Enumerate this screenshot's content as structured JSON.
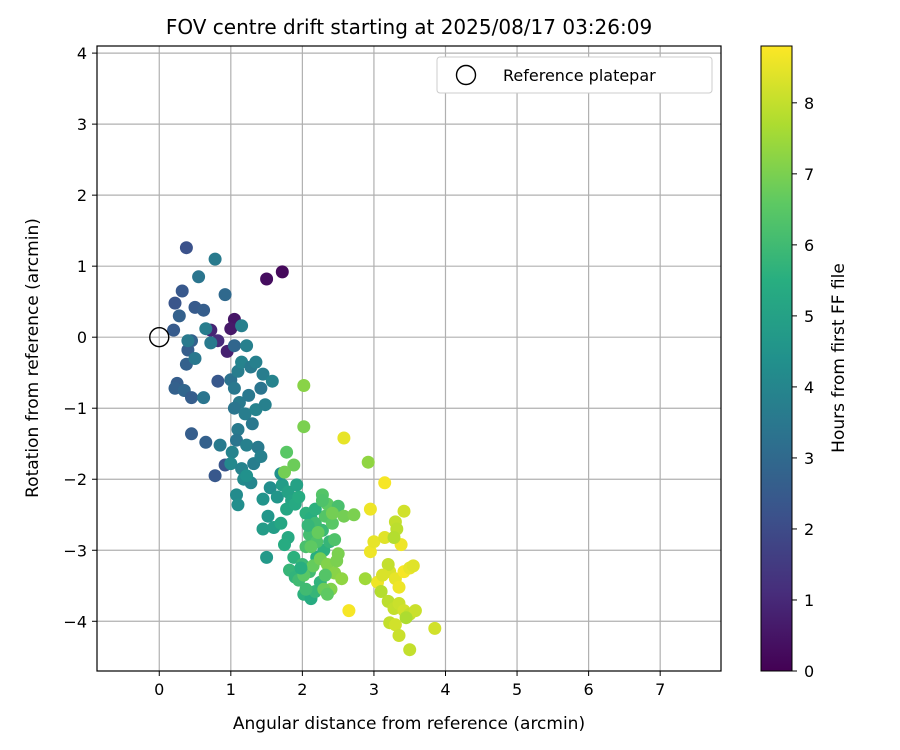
{
  "chart_data": {
    "type": "scatter",
    "title": "FOV centre drift starting at 2025/08/17 03:26:09",
    "xlabel": "Angular distance from reference (arcmin)",
    "ylabel": "Rotation from reference (arcmin)",
    "xlim": [
      -0.87,
      7.85
    ],
    "ylim": [
      -4.7,
      4.1
    ],
    "xticks": [
      0,
      1,
      2,
      3,
      4,
      5,
      6,
      7
    ],
    "yticks": [
      -4,
      -3,
      -2,
      -1,
      0,
      1,
      2,
      3,
      4
    ],
    "grid": true,
    "legend": {
      "placement": "top-right",
      "entries": [
        "Reference platepar"
      ]
    },
    "reference_point": {
      "x": 0,
      "y": 0,
      "label": "Reference platepar"
    },
    "colorbar": {
      "label": "Hours from first FF file",
      "colormap": "viridis",
      "range": [
        0,
        8.8
      ],
      "ticks": [
        0,
        1,
        2,
        3,
        4,
        5,
        6,
        7,
        8
      ]
    },
    "points": [
      [
        1.5,
        0.82,
        0.3
      ],
      [
        1.72,
        0.92,
        0.2
      ],
      [
        1.05,
        0.25,
        0.5
      ],
      [
        1.0,
        0.12,
        0.6
      ],
      [
        0.72,
        0.1,
        0.9
      ],
      [
        0.82,
        -0.05,
        1.1
      ],
      [
        0.95,
        -0.2,
        0.8
      ],
      [
        0.38,
        1.26,
        2.2
      ],
      [
        0.22,
        0.48,
        2.3
      ],
      [
        0.32,
        0.65,
        2.4
      ],
      [
        0.5,
        0.42,
        2.5
      ],
      [
        0.62,
        0.38,
        2.6
      ],
      [
        0.28,
        0.3,
        2.7
      ],
      [
        0.2,
        0.1,
        2.5
      ],
      [
        0.4,
        -0.18,
        2.6
      ],
      [
        0.45,
        -0.05,
        2.8
      ],
      [
        0.38,
        -0.38,
        2.7
      ],
      [
        0.25,
        -0.65,
        2.6
      ],
      [
        0.22,
        -0.72,
        2.7
      ],
      [
        0.35,
        -0.75,
        2.9
      ],
      [
        0.45,
        -0.85,
        2.6
      ],
      [
        0.82,
        -0.62,
        2.4
      ],
      [
        0.45,
        -1.36,
        2.6
      ],
      [
        0.65,
        -1.48,
        2.7
      ],
      [
        0.78,
        -1.95,
        2.4
      ],
      [
        0.92,
        -1.8,
        2.3
      ],
      [
        1.05,
        -0.12,
        2.9
      ],
      [
        0.92,
        0.6,
        3.0
      ],
      [
        0.55,
        0.85,
        3.4
      ],
      [
        0.78,
        1.1,
        3.6
      ],
      [
        1.15,
        0.16,
        3.8
      ],
      [
        1.22,
        -0.12,
        3.8
      ],
      [
        0.72,
        -0.08,
        3.6
      ],
      [
        0.65,
        0.12,
        3.7
      ],
      [
        0.4,
        -0.05,
        3.6
      ],
      [
        0.5,
        -0.3,
        3.5
      ],
      [
        0.62,
        -0.85,
        3.4
      ],
      [
        0.85,
        -1.52,
        3.6
      ],
      [
        1.0,
        -0.6,
        3.3
      ],
      [
        1.05,
        -0.72,
        3.5
      ],
      [
        1.1,
        -0.48,
        3.7
      ],
      [
        1.15,
        -0.35,
        3.9
      ],
      [
        1.28,
        -0.42,
        3.6
      ],
      [
        1.35,
        -0.35,
        3.8
      ],
      [
        1.45,
        -0.52,
        3.7
      ],
      [
        1.58,
        -0.62,
        3.9
      ],
      [
        1.42,
        -0.72,
        3.4
      ],
      [
        1.25,
        -0.82,
        3.5
      ],
      [
        1.12,
        -0.92,
        3.6
      ],
      [
        1.05,
        -1.0,
        3.4
      ],
      [
        1.2,
        -1.08,
        3.7
      ],
      [
        1.35,
        -1.02,
        3.9
      ],
      [
        1.48,
        -0.95,
        3.8
      ],
      [
        1.3,
        -1.22,
        3.5
      ],
      [
        1.1,
        -1.3,
        3.6
      ],
      [
        1.08,
        -1.45,
        3.4
      ],
      [
        1.22,
        -1.52,
        3.8
      ],
      [
        1.38,
        -1.55,
        3.6
      ],
      [
        1.02,
        -1.62,
        3.9
      ],
      [
        1.0,
        -1.78,
        4.1
      ],
      [
        1.15,
        -1.85,
        3.9
      ],
      [
        1.32,
        -1.78,
        3.7
      ],
      [
        1.42,
        -1.68,
        3.8
      ],
      [
        1.18,
        -2.0,
        4.2
      ],
      [
        1.28,
        -2.05,
        4.0
      ],
      [
        1.08,
        -2.22,
        4.2
      ],
      [
        1.1,
        -2.36,
        4.3
      ],
      [
        1.22,
        -1.95,
        4.4
      ],
      [
        1.45,
        -2.28,
        4.5
      ],
      [
        1.52,
        -2.52,
        4.6
      ],
      [
        1.45,
        -2.7,
        4.8
      ],
      [
        1.5,
        -3.1,
        4.7
      ],
      [
        1.6,
        -2.68,
        4.9
      ],
      [
        1.55,
        -2.12,
        4.3
      ],
      [
        1.65,
        -2.25,
        4.6
      ],
      [
        1.72,
        -2.08,
        4.8
      ],
      [
        1.8,
        -2.18,
        5.0
      ],
      [
        1.7,
        -1.92,
        4.4
      ],
      [
        1.85,
        -2.3,
        5.1
      ],
      [
        1.78,
        -2.42,
        5.2
      ],
      [
        1.9,
        -2.35,
        5.3
      ],
      [
        1.95,
        -2.25,
        5.4
      ],
      [
        2.05,
        -2.48,
        5.6
      ],
      [
        2.12,
        -2.55,
        5.5
      ],
      [
        1.8,
        -2.82,
        5.3
      ],
      [
        1.75,
        -2.92,
        5.4
      ],
      [
        1.88,
        -3.1,
        5.6
      ],
      [
        1.82,
        -3.28,
        5.8
      ],
      [
        1.9,
        -3.38,
        5.7
      ],
      [
        2.0,
        -3.2,
        5.9
      ],
      [
        2.1,
        -3.3,
        6.0
      ],
      [
        2.02,
        -3.62,
        5.6
      ],
      [
        2.12,
        -3.68,
        5.4
      ],
      [
        2.18,
        -3.58,
        5.8
      ],
      [
        2.25,
        -3.45,
        5.7
      ],
      [
        2.2,
        -3.1,
        5.5
      ],
      [
        2.3,
        -3.0,
        5.6
      ],
      [
        2.38,
        -2.88,
        5.8
      ],
      [
        2.28,
        -2.72,
        5.9
      ],
      [
        2.18,
        -2.62,
        6.0
      ],
      [
        2.1,
        -2.78,
        6.1
      ],
      [
        2.05,
        -2.95,
        6.2
      ],
      [
        2.2,
        -2.88,
        6.3
      ],
      [
        2.32,
        -2.52,
        6.4
      ],
      [
        2.42,
        -2.62,
        6.5
      ],
      [
        2.35,
        -2.35,
        6.6
      ],
      [
        2.28,
        -2.22,
        6.4
      ],
      [
        2.5,
        -2.38,
        6.2
      ],
      [
        2.45,
        -2.85,
        6.3
      ],
      [
        1.95,
        -3.42,
        6.0
      ],
      [
        2.02,
        -3.35,
        6.5
      ],
      [
        2.15,
        -3.22,
        6.7
      ],
      [
        2.25,
        -3.12,
        6.9
      ],
      [
        2.35,
        -3.2,
        7.1
      ],
      [
        2.45,
        -3.32,
        7.2
      ],
      [
        2.5,
        -3.05,
        7.0
      ],
      [
        2.55,
        -3.4,
        7.3
      ],
      [
        2.4,
        -3.55,
        7.1
      ],
      [
        2.3,
        -3.55,
        6.8
      ],
      [
        2.02,
        -1.26,
        7.0
      ],
      [
        2.02,
        -0.68,
        7.2
      ],
      [
        1.88,
        -1.8,
        6.8
      ],
      [
        1.78,
        -1.62,
        6.5
      ],
      [
        1.75,
        -1.9,
        6.9
      ],
      [
        2.58,
        -2.52,
        6.9
      ],
      [
        2.72,
        -2.5,
        7.0
      ],
      [
        2.92,
        -1.76,
        7.3
      ],
      [
        2.58,
        -1.42,
        8.5
      ],
      [
        3.15,
        -2.05,
        8.7
      ],
      [
        2.95,
        -2.42,
        8.6
      ],
      [
        2.65,
        -3.85,
        8.7
      ],
      [
        2.95,
        -3.02,
        8.6
      ],
      [
        3.0,
        -2.88,
        8.5
      ],
      [
        3.05,
        -3.45,
        8.6
      ],
      [
        3.15,
        -2.82,
        8.4
      ],
      [
        3.22,
        -3.3,
        8.3
      ],
      [
        3.3,
        -3.4,
        8.5
      ],
      [
        3.35,
        -3.52,
        8.6
      ],
      [
        3.42,
        -3.3,
        8.7
      ],
      [
        3.5,
        -3.25,
        8.5
      ],
      [
        3.55,
        -3.22,
        8.4
      ],
      [
        3.38,
        -2.92,
        8.6
      ],
      [
        3.42,
        -2.45,
        8.2
      ],
      [
        3.3,
        -2.6,
        8.0
      ],
      [
        3.32,
        -2.7,
        7.9
      ],
      [
        3.28,
        -2.82,
        7.8
      ],
      [
        3.2,
        -3.2,
        8.0
      ],
      [
        3.1,
        -3.58,
        7.8
      ],
      [
        3.2,
        -3.72,
        7.9
      ],
      [
        3.28,
        -3.82,
        8.0
      ],
      [
        3.35,
        -3.75,
        8.1
      ],
      [
        3.42,
        -3.85,
        8.2
      ],
      [
        3.5,
        -3.9,
        8.0
      ],
      [
        3.58,
        -3.85,
        8.1
      ],
      [
        3.22,
        -4.02,
        8.0
      ],
      [
        3.3,
        -4.05,
        8.2
      ],
      [
        3.35,
        -4.2,
        8.1
      ],
      [
        3.5,
        -4.4,
        8.0
      ],
      [
        3.85,
        -4.1,
        8.2
      ],
      [
        3.12,
        -3.35,
        8.3
      ],
      [
        3.45,
        -3.95,
        7.7
      ],
      [
        2.88,
        -3.4,
        7.5
      ],
      [
        2.05,
        -3.55,
        6.0
      ],
      [
        2.08,
        -2.65,
        5.8
      ],
      [
        2.18,
        -2.42,
        5.6
      ],
      [
        2.28,
        -2.3,
        6.3
      ],
      [
        1.92,
        -2.08,
        5.0
      ],
      [
        1.7,
        -2.62,
        5.2
      ],
      [
        1.98,
        -3.25,
        5.5
      ],
      [
        2.12,
        -2.95,
        6.6
      ],
      [
        2.22,
        -2.75,
        6.7
      ],
      [
        2.32,
        -3.35,
        6.4
      ],
      [
        2.48,
        -3.15,
        7.0
      ],
      [
        2.35,
        -3.62,
        6.6
      ],
      [
        2.42,
        -2.48,
        6.9
      ]
    ]
  }
}
